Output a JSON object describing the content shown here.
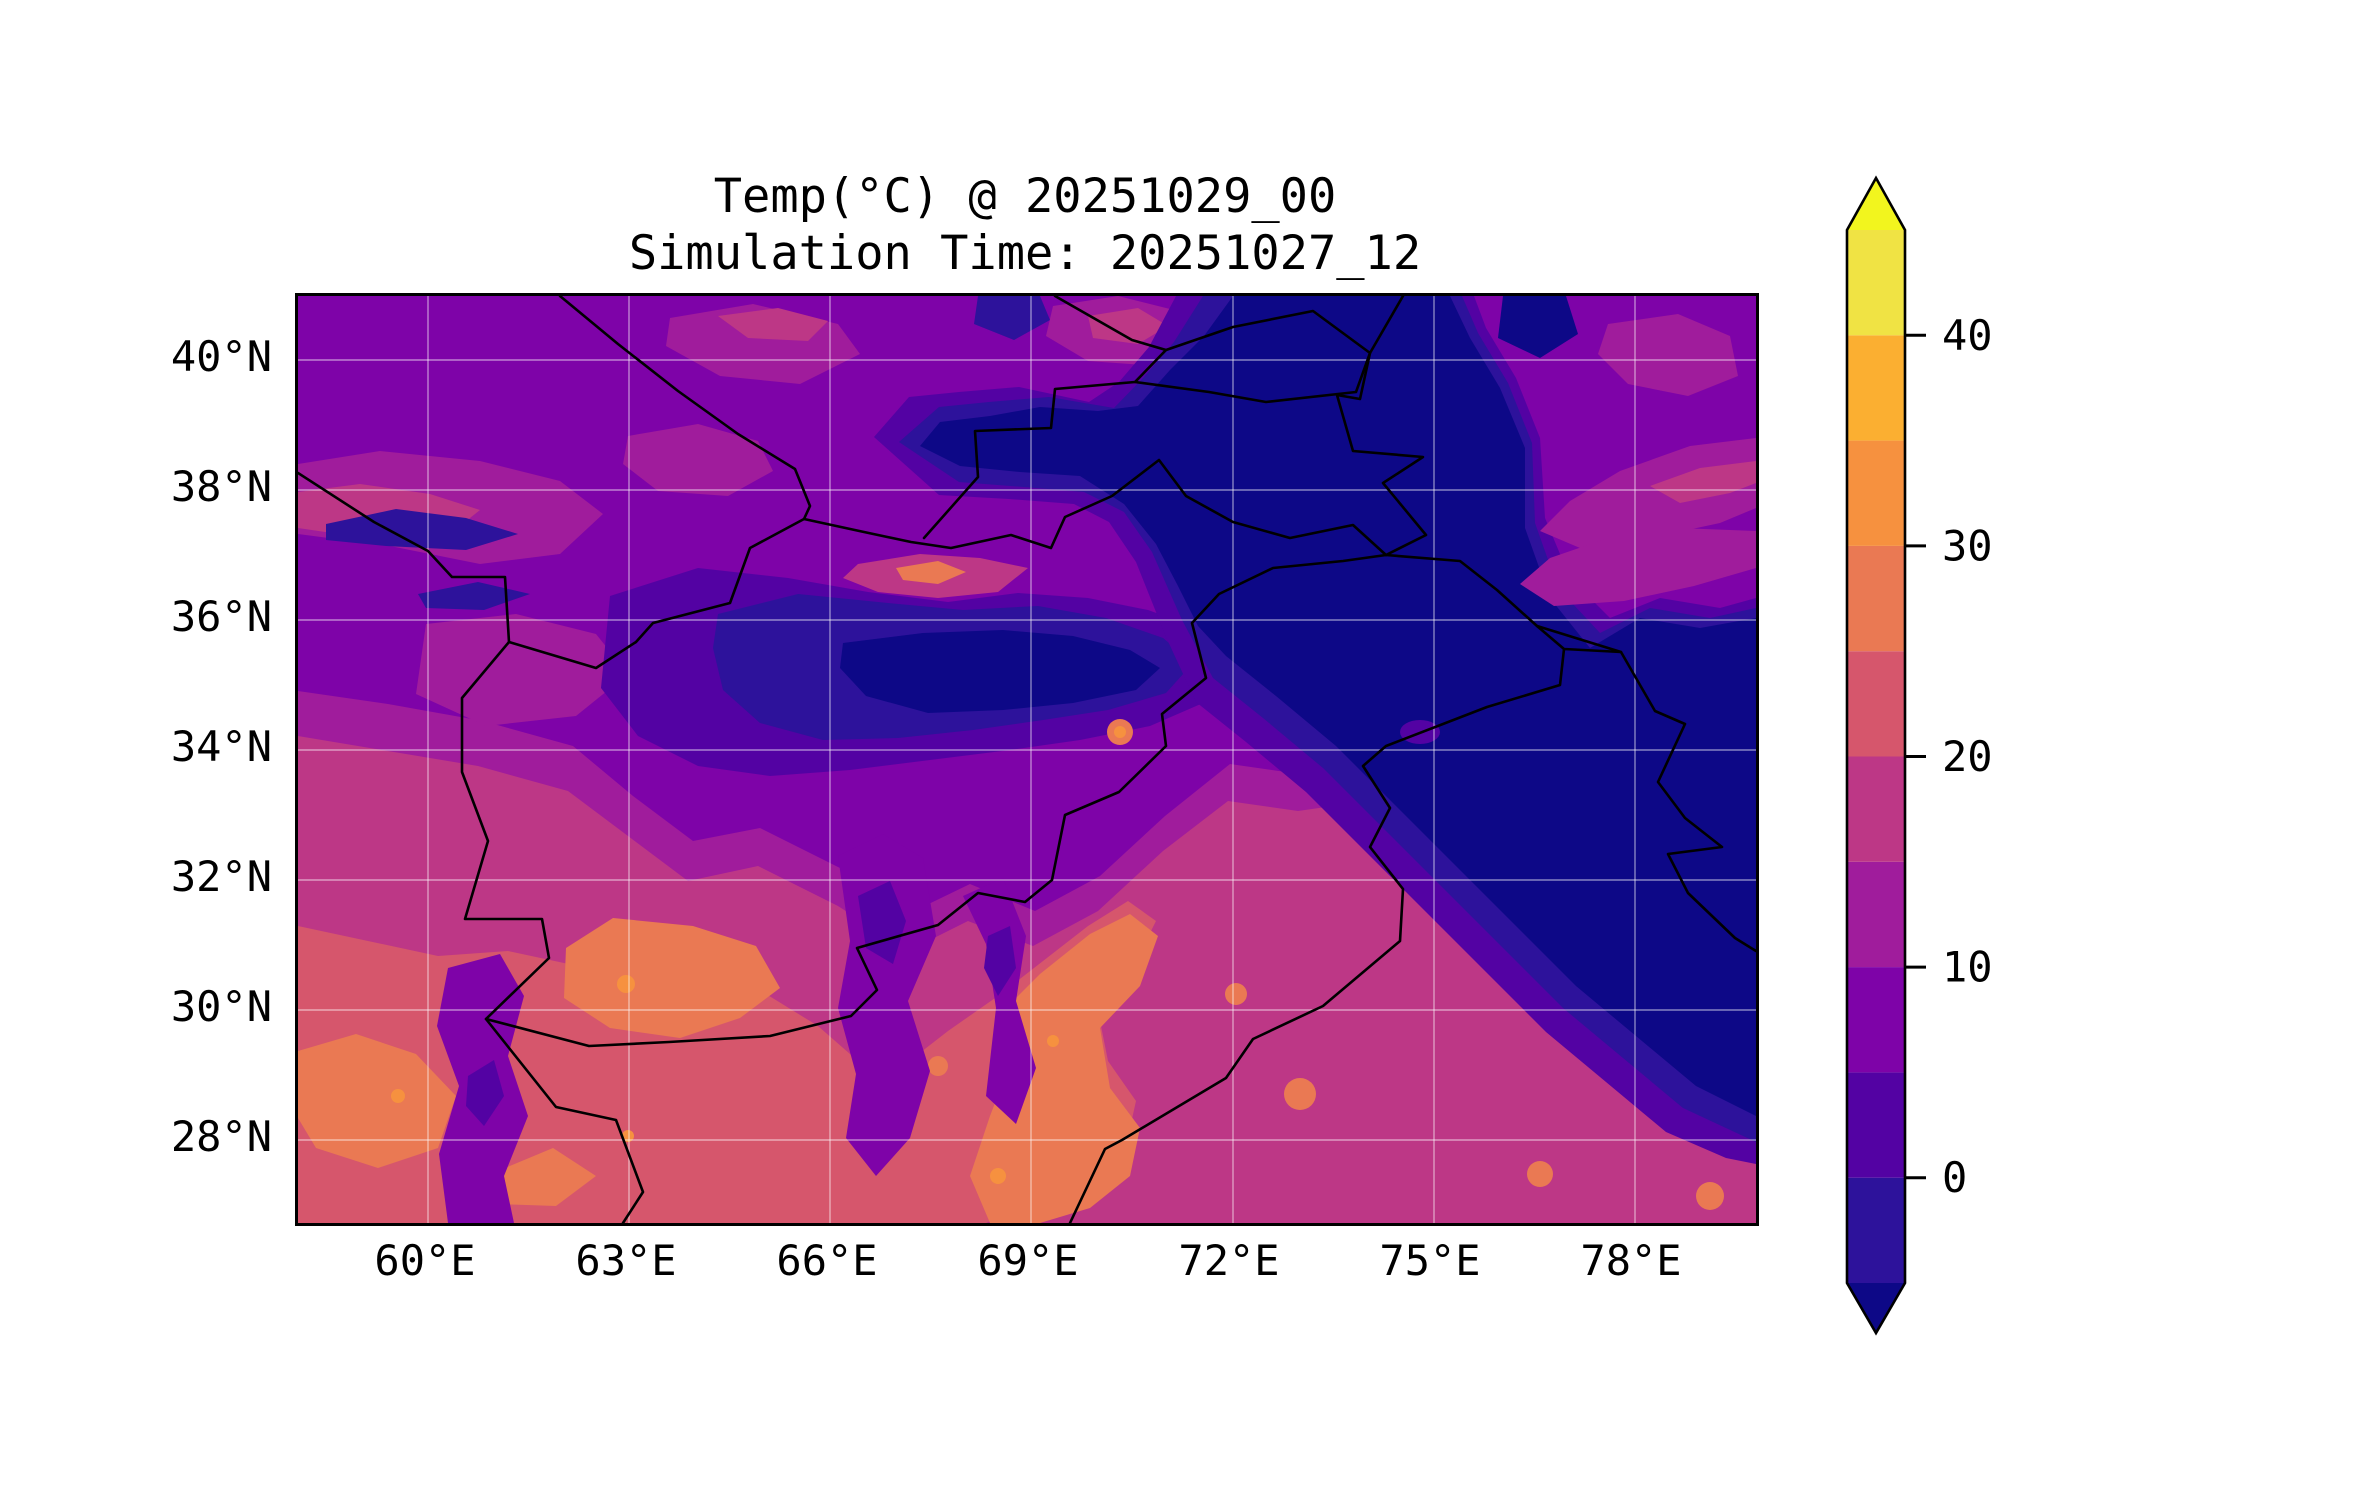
{
  "title": {
    "line1": "Temp(°C) @ 20251029_00",
    "line2": "Simulation Time: 20251027_12"
  },
  "x_axis": {
    "ticks": [
      "60°E",
      "63°E",
      "66°E",
      "69°E",
      "72°E",
      "75°E",
      "78°E"
    ]
  },
  "y_axis": {
    "ticks": [
      "40°N",
      "38°N",
      "36°N",
      "34°N",
      "32°N",
      "30°N",
      "28°N"
    ]
  },
  "colorbar": {
    "tick_labels": [
      "40",
      "30",
      "20",
      "10",
      "0"
    ],
    "tick_values": [
      40,
      30,
      20,
      10,
      0
    ],
    "levels": [
      -5,
      0,
      5,
      10,
      15,
      20,
      25,
      30,
      35,
      40,
      45
    ],
    "extend": "both",
    "segment_colors_bottom_to_top": [
      "#2d129b",
      "#5302a3",
      "#7e03a8",
      "#a01c9c",
      "#bd3786",
      "#d6566c",
      "#ea7953",
      "#f6913f",
      "#fbaf31",
      "#f0e344"
    ],
    "extend_under_color": "#0d0887",
    "extend_over_color": "#f2f51e"
  },
  "palette": {
    "under": "#0d0887",
    "L_m5_0": "#2d129b",
    "L0_5": "#5302a3",
    "L5_10": "#7e03a8",
    "L10_15": "#a01c9c",
    "L15_20": "#bd3786",
    "L20_25": "#d6566c",
    "L25_30": "#ea7953",
    "L30_35": "#f6913f",
    "L35_40": "#fbaf31",
    "L40_45": "#f0e344",
    "over": "#f2f51e"
  },
  "chart_data": {
    "type": "filled_contour_map",
    "title": "Temp(°C) @ 20251029_00",
    "subtitle": "Simulation Time: 20251027_12",
    "variable": "Temp",
    "units": "°C",
    "valid_time": "20251029_00",
    "simulation_time": "20251027_12",
    "colormap": "plasma",
    "contour_levels_c": [
      -5,
      0,
      5,
      10,
      15,
      20,
      25,
      30,
      35,
      40,
      45
    ],
    "colorbar_extend": "both",
    "colorbar_tick_values_c": [
      0,
      10,
      20,
      30,
      40
    ],
    "x_tick_longitudes_deg_e": [
      60,
      63,
      66,
      69,
      72,
      75,
      78
    ],
    "y_tick_latitudes_deg_n": [
      28,
      30,
      32,
      34,
      36,
      38,
      40
    ],
    "approx_extent": {
      "lon_min_e": 58.1,
      "lon_max_e": 79.8,
      "lat_min_n": 26.7,
      "lat_max_n": 41.0
    },
    "grid": true,
    "map_overlays": [
      "country and state boundary lines",
      "white graticule at labeled ticks"
    ],
    "notable_features": [
      "Coldest air (below -5 to 0 °C, dark navy) over the Karakoram/Himalaya arc in the northeast and a band along the Hindu Kush in central Afghanistan",
      "Cold band (0-5 °C) across Tajik/Pamir mountains near 38-39.5N east of 67.5E",
      "Mild purple (5-15 °C) over northern Afghanistan, Turkmenistan plains and the far-northeast corner basin",
      "Warm pink (15-25 °C) across southern Afghanistan, Balochistan, Punjab and Indus plains",
      "Warmest salmon/orange patches (25-35 °C) along the lower Indus valley, Helmand/Sistan basin and southwest corner"
    ]
  }
}
